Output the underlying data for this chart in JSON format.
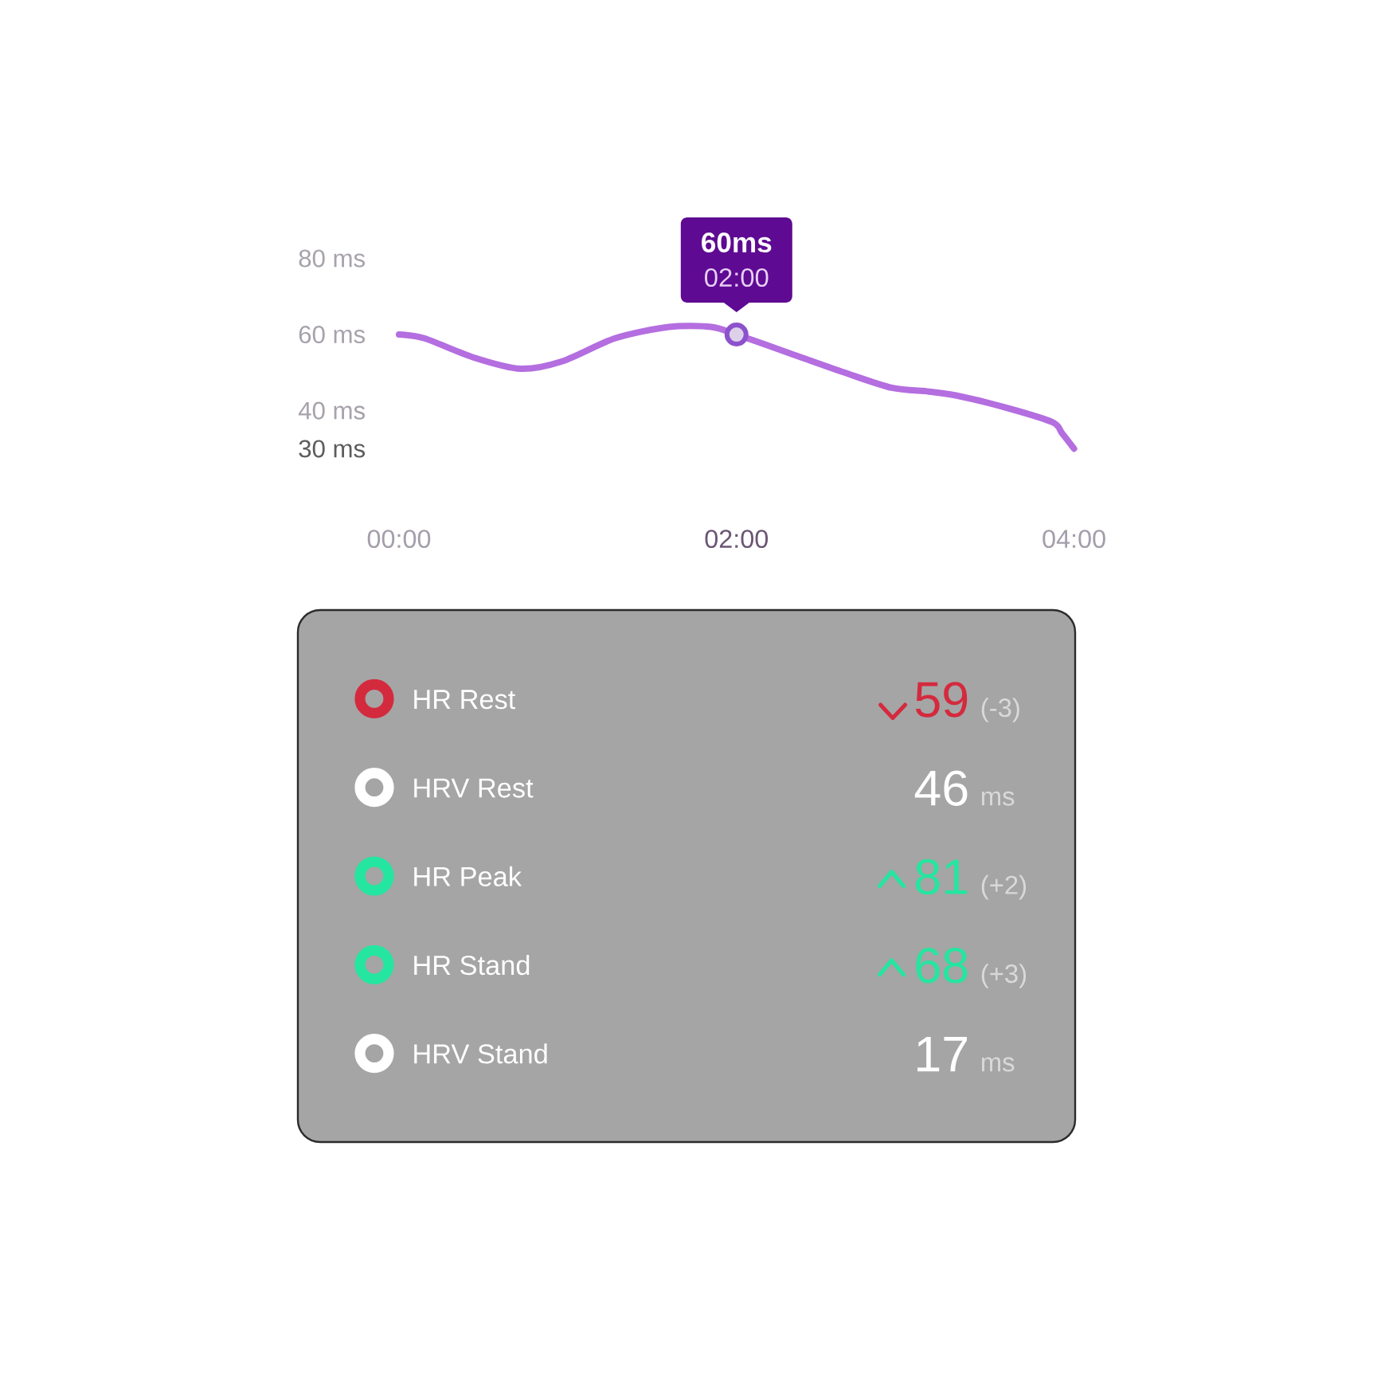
{
  "chart_data": [
    {
      "type": "line",
      "x": [
        0,
        0.15,
        0.44,
        0.72,
        0.97,
        1.28,
        1.6,
        1.85,
        2,
        2.32,
        2.64,
        2.92,
        3.14,
        3.3,
        3.58,
        3.87,
        3.93,
        4
      ],
      "values": [
        60,
        59,
        54,
        51,
        53,
        59,
        62,
        62,
        60,
        55,
        50,
        46,
        45,
        44,
        41,
        37,
        34,
        30
      ],
      "color": "#b46ee0",
      "xlim": [
        0,
        4
      ],
      "ylim": [
        30,
        80
      ],
      "xticks": [
        {
          "value": 0,
          "label": "00:00"
        },
        {
          "value": 2,
          "label": "02:00"
        },
        {
          "value": 4,
          "label": "04:00"
        }
      ],
      "yticks": [
        {
          "value": 30,
          "label": "30 ms"
        },
        {
          "value": 40,
          "label": "40 ms"
        },
        {
          "value": 60,
          "label": "60 ms"
        },
        {
          "value": 80,
          "label": "80 ms"
        }
      ],
      "annotations": [
        {
          "text": "60ms",
          "x": 2,
          "y": 60
        },
        {
          "text": "02:00",
          "x": 2,
          "y": 60
        }
      ]
    },
    {
      "type": "other",
      "categories": [
        "HR Rest",
        "HRV Rest",
        "HR Peak",
        "HR Stand",
        "HRV Stand"
      ],
      "colors": [
        "#d42a3e",
        "#ffffff",
        "#24e6a0",
        "#24e6a0",
        "#ffffff"
      ],
      "data_labels": true,
      "series": [
        {
          "values": [
            59,
            46,
            81,
            68,
            17
          ]
        },
        {
          "color": "#d9d9d9",
          "values": [
            -3,
            null,
            2,
            3,
            null
          ],
          "value_labels": [
            "(-3)",
            "ms",
            "(+2)",
            "(+3)",
            "ms"
          ]
        }
      ]
    }
  ]
}
